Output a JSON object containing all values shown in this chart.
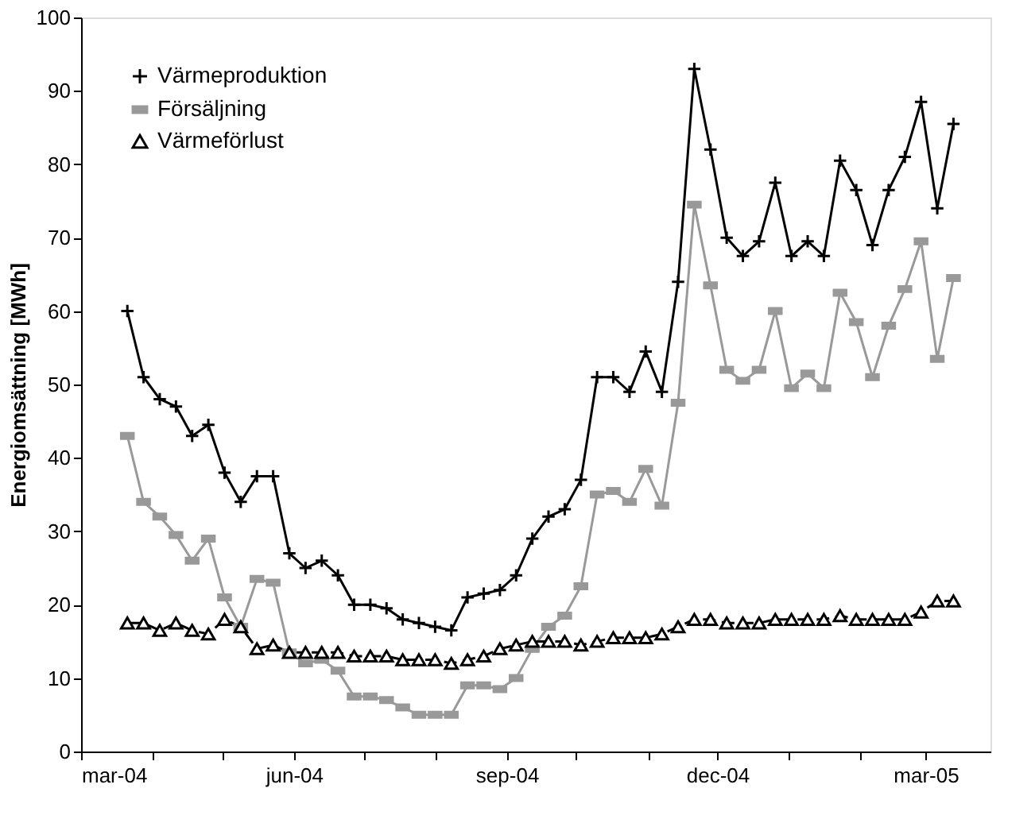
{
  "chart_data": {
    "type": "line",
    "ylabel": "Energiomsättning [MWh]",
    "x": [
      "2004-03-21",
      "2004-03-28",
      "2004-04-04",
      "2004-04-11",
      "2004-04-18",
      "2004-04-25",
      "2004-05-02",
      "2004-05-09",
      "2004-05-16",
      "2004-05-23",
      "2004-05-30",
      "2004-06-06",
      "2004-06-13",
      "2004-06-20",
      "2004-06-27",
      "2004-07-04",
      "2004-07-11",
      "2004-07-18",
      "2004-07-25",
      "2004-08-01",
      "2004-08-08",
      "2004-08-15",
      "2004-08-22",
      "2004-08-29",
      "2004-09-05",
      "2004-09-12",
      "2004-09-19",
      "2004-09-26",
      "2004-10-03",
      "2004-10-10",
      "2004-10-17",
      "2004-10-24",
      "2004-10-31",
      "2004-11-07",
      "2004-11-14",
      "2004-11-21",
      "2004-11-28",
      "2004-12-05",
      "2004-12-12",
      "2004-12-19",
      "2004-12-26",
      "2005-01-02",
      "2005-01-09",
      "2005-01-16",
      "2005-01-23",
      "2005-01-30",
      "2005-02-06",
      "2005-02-13",
      "2005-02-20",
      "2005-02-27",
      "2005-03-06",
      "2005-03-13"
    ],
    "series": [
      {
        "name": "Värmeproduktion",
        "color": "#000000",
        "marker": "cross",
        "line_style": "solid",
        "values": [
          60,
          51,
          48,
          47,
          43,
          44.5,
          38,
          34,
          37.5,
          37.5,
          27,
          25,
          26,
          24,
          20,
          20,
          19.5,
          18,
          17.5,
          17,
          16.5,
          21,
          21.5,
          22,
          24,
          29,
          32,
          33,
          37,
          51,
          51,
          49,
          54.5,
          49,
          64,
          93,
          82,
          70,
          67.5,
          69.5,
          77.5,
          67.5,
          69.5,
          67.5,
          80.5,
          76.5,
          69,
          76.5,
          81,
          88.5,
          74,
          85.5
        ]
      },
      {
        "name": "Försäljning",
        "color": "#999999",
        "marker": "square",
        "line_style": "solid",
        "values": [
          43,
          34,
          32,
          29.5,
          26,
          29,
          21,
          17,
          23.5,
          23,
          13.5,
          12,
          12.5,
          11,
          7.5,
          7.5,
          7,
          6,
          5,
          5,
          5,
          9,
          9,
          8.5,
          10,
          14,
          17,
          18.5,
          22.5,
          35,
          35.5,
          34,
          38.5,
          33.5,
          47.5,
          74.5,
          63.5,
          52,
          50.5,
          52,
          60,
          49.5,
          51.5,
          49.5,
          62.5,
          58.5,
          51,
          58,
          63,
          69.5,
          53.5,
          64.5
        ]
      },
      {
        "name": "Värmeförlust",
        "color": "#000000",
        "marker": "triangle",
        "line_style": "dashed",
        "values": [
          17.5,
          17.5,
          16.5,
          17.5,
          16.5,
          16,
          18,
          17,
          14,
          14.5,
          13.5,
          13.5,
          13.5,
          13.5,
          13,
          13,
          13,
          12.5,
          12.5,
          12.5,
          12,
          12.5,
          13,
          14,
          14.5,
          15,
          15,
          15,
          14.5,
          15,
          15.5,
          15.5,
          15.5,
          16,
          17,
          18,
          18,
          17.5,
          17.5,
          17.5,
          18,
          18,
          18,
          18,
          18.5,
          18,
          18,
          18,
          18,
          19,
          20.5,
          20.5
        ]
      }
    ],
    "xlim": [
      "2004-03-01",
      "2005-03-29"
    ],
    "xticks": [
      {
        "value": "2004-03-01",
        "label": "mar-04"
      },
      {
        "value": "2004-04-01",
        "label": null
      },
      {
        "value": "2004-05-01",
        "label": null
      },
      {
        "value": "2004-06-01",
        "label": "jun-04"
      },
      {
        "value": "2004-07-01",
        "label": null
      },
      {
        "value": "2004-08-01",
        "label": null
      },
      {
        "value": "2004-09-01",
        "label": "sep-04"
      },
      {
        "value": "2004-10-01",
        "label": null
      },
      {
        "value": "2004-11-01",
        "label": null
      },
      {
        "value": "2004-12-01",
        "label": "dec-04"
      },
      {
        "value": "2005-01-01",
        "label": null
      },
      {
        "value": "2005-02-01",
        "label": null
      },
      {
        "value": "2005-03-01",
        "label": "mar-05"
      }
    ],
    "ylim": [
      0,
      100
    ],
    "yticks": [
      0,
      10,
      20,
      30,
      40,
      50,
      60,
      70,
      80,
      90,
      100
    ],
    "grid": false,
    "legend": "top left"
  }
}
